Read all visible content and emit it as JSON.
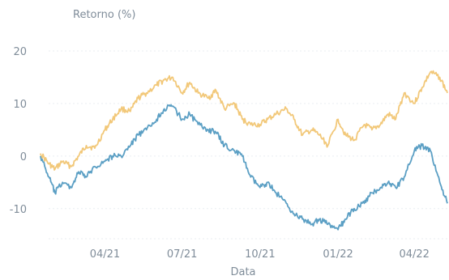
{
  "chart_data": {
    "type": "line",
    "title": "",
    "ylabel": "Retorno (%)",
    "xlabel": "Data",
    "ylim": [
      -16.5,
      22
    ],
    "xlim": [
      "2021-01-15",
      "2022-05-10"
    ],
    "yticks": [
      -10,
      0,
      10,
      20
    ],
    "xticks": [
      {
        "label": "04/21",
        "date": "2021-04-01"
      },
      {
        "label": "07/21",
        "date": "2021-07-01"
      },
      {
        "label": "10/21",
        "date": "2021-10-01"
      },
      {
        "label": "01/22",
        "date": "2022-01-01"
      },
      {
        "label": "04/22",
        "date": "2022-04-01"
      }
    ],
    "grid": true,
    "legend": "none",
    "colors": {
      "series1": "#f2c879",
      "series2": "#5b9fc4"
    },
    "series": [
      {
        "color": "#f2c879",
        "x": [
          "2021-01-15",
          "2021-01-25",
          "2021-02-01",
          "2021-02-10",
          "2021-02-20",
          "2021-03-01",
          "2021-03-10",
          "2021-03-20",
          "2021-04-01",
          "2021-04-10",
          "2021-04-20",
          "2021-05-01",
          "2021-05-10",
          "2021-05-20",
          "2021-06-01",
          "2021-06-10",
          "2021-06-20",
          "2021-07-01",
          "2021-07-10",
          "2021-07-20",
          "2021-08-01",
          "2021-08-10",
          "2021-08-20",
          "2021-09-01",
          "2021-09-10",
          "2021-09-20",
          "2021-10-01",
          "2021-10-10",
          "2021-10-20",
          "2021-11-01",
          "2021-11-10",
          "2021-11-20",
          "2021-12-01",
          "2021-12-10",
          "2021-12-20",
          "2022-01-01",
          "2022-01-10",
          "2022-01-20",
          "2022-02-01",
          "2022-02-10",
          "2022-02-20",
          "2022-03-01",
          "2022-03-10",
          "2022-03-20",
          "2022-04-01",
          "2022-04-10",
          "2022-04-20",
          "2022-05-01",
          "2022-05-10"
        ],
        "y": [
          0.5,
          -1.5,
          -2.5,
          -1,
          -2,
          0,
          2,
          1.5,
          5,
          7,
          9,
          8.5,
          11,
          12,
          13.5,
          14.5,
          15,
          12,
          14,
          12,
          11,
          12.5,
          9,
          10,
          7,
          6,
          6,
          7,
          8,
          9,
          7,
          4,
          5,
          4,
          2,
          7,
          4,
          3,
          6,
          5,
          6,
          8,
          7,
          12,
          10,
          13,
          16,
          15,
          12
        ]
      },
      {
        "color": "#5b9fc4",
        "x": [
          "2021-01-15",
          "2021-01-25",
          "2021-02-01",
          "2021-02-10",
          "2021-02-20",
          "2021-03-01",
          "2021-03-10",
          "2021-03-20",
          "2021-04-01",
          "2021-04-10",
          "2021-04-20",
          "2021-05-01",
          "2021-05-10",
          "2021-05-20",
          "2021-06-01",
          "2021-06-10",
          "2021-06-20",
          "2021-07-01",
          "2021-07-10",
          "2021-07-20",
          "2021-08-01",
          "2021-08-10",
          "2021-08-20",
          "2021-09-01",
          "2021-09-10",
          "2021-09-20",
          "2021-10-01",
          "2021-10-10",
          "2021-10-20",
          "2021-11-01",
          "2021-11-10",
          "2021-11-20",
          "2021-12-01",
          "2021-12-10",
          "2021-12-20",
          "2022-01-01",
          "2022-01-10",
          "2022-01-20",
          "2022-02-01",
          "2022-02-10",
          "2022-02-20",
          "2022-03-01",
          "2022-03-10",
          "2022-03-20",
          "2022-04-01",
          "2022-04-10",
          "2022-04-20",
          "2022-05-01",
          "2022-05-10"
        ],
        "y": [
          0,
          -4,
          -7,
          -5,
          -6,
          -3,
          -4,
          -2,
          -1,
          0,
          0,
          2,
          4,
          5,
          7,
          9,
          9.5,
          7,
          8,
          6,
          5,
          4.5,
          2,
          1,
          0,
          -4,
          -6,
          -5,
          -7,
          -9,
          -11,
          -12,
          -13,
          -12,
          -13,
          -14,
          -12,
          -10,
          -9,
          -7,
          -6,
          -5,
          -6,
          -4,
          1,
          2,
          1,
          -5,
          -9
        ]
      }
    ]
  }
}
